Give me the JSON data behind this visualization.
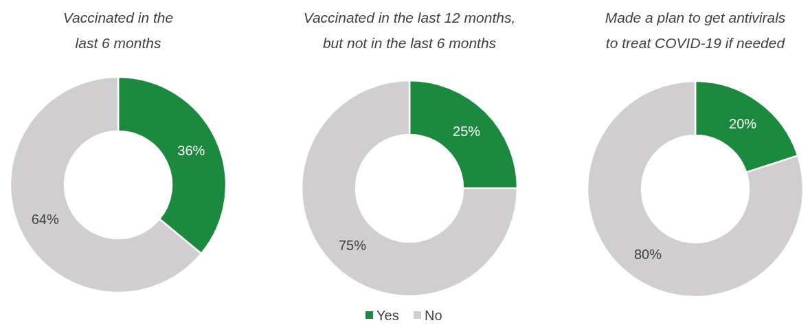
{
  "chart_data": [
    {
      "type": "donut",
      "title": "Vaccinated in the\nlast 6 months",
      "values": [
        36,
        64
      ],
      "colors": [
        "#1b8a3f",
        "#d0cece"
      ],
      "value_labels": [
        "36%",
        "64%"
      ]
    },
    {
      "type": "donut",
      "title": "Vaccinated in the last 12 months,\nbut not in the last 6 months",
      "categories": [
        "Yes",
        "No"
      ],
      "values": [
        25,
        75
      ],
      "colors": [
        "#1b8a3f",
        "#d0cece"
      ],
      "value_labels": [
        "25%",
        "75%"
      ],
      "legend": "bottom"
    },
    {
      "type": "donut",
      "title": "Made a plan to get antivirals\nto treat COVID-19 if needed",
      "values": [
        20,
        80
      ],
      "colors": [
        "#1b8a3f",
        "#d0cece"
      ],
      "value_labels": [
        "20%",
        "80%"
      ]
    }
  ]
}
